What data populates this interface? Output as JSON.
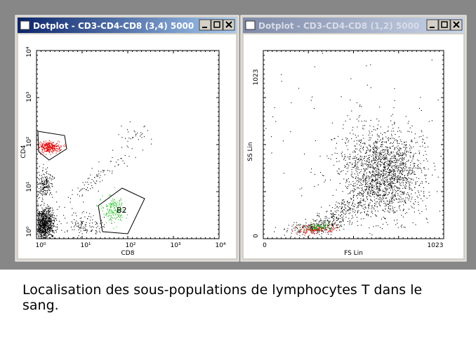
{
  "windows": [
    {
      "title": "Dotplot - CD3-CD4-CD8 (3,4) 5000",
      "active": true,
      "plot": {
        "x_label": "CD8",
        "y_label": "CD4",
        "x_ticks": [
          "10⁰",
          "10¹",
          "10²",
          "10³",
          "10⁴"
        ],
        "y_ticks": [
          "10⁰",
          "10¹",
          "10²",
          "10³",
          "10⁴"
        ],
        "gate_label": "B2"
      }
    },
    {
      "title": "Dotplot - CD3-CD4-CD8 (1,2) 5000",
      "active": false,
      "plot": {
        "x_label": "FS Lin",
        "y_label": "SS Lin",
        "x_ticks": [
          "0",
          "1023"
        ],
        "y_ticks": [
          "0",
          "1023"
        ]
      }
    }
  ],
  "caption": "Localisation des sous-populations de lymphocytes T dans le sang."
}
